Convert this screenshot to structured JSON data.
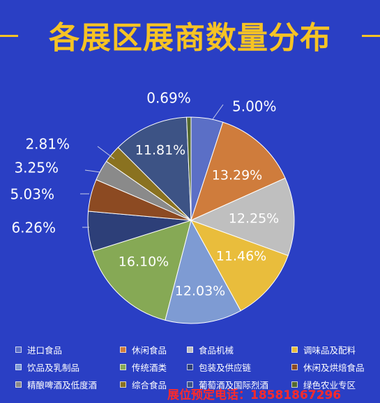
{
  "title": "各展区展商数量分布",
  "footer": "展位预定电话：18581867296",
  "chart_data": {
    "type": "pie",
    "title": "各展区展商数量分布",
    "slices": [
      {
        "name": "进口食品",
        "value": 5.0,
        "label": "5.00%",
        "color": "#5b6fc6"
      },
      {
        "name": "休闲食品",
        "value": 13.29,
        "label": "13.29%",
        "color": "#cf7c3c"
      },
      {
        "name": "食品机械",
        "value": 12.25,
        "label": "12.25%",
        "color": "#bfbfbf"
      },
      {
        "name": "调味品及配料",
        "value": 11.46,
        "label": "11.46%",
        "color": "#e9bd3c"
      },
      {
        "name": "饮品及乳制品",
        "value": 12.03,
        "label": "12.03%",
        "color": "#7e9bd3"
      },
      {
        "name": "传统酒类",
        "value": 16.1,
        "label": "16.10%",
        "color": "#86a955"
      },
      {
        "name": "包装及供应链",
        "value": 6.26,
        "label": "6.26%",
        "color": "#2d3f78"
      },
      {
        "name": "休闲及烘焙食品",
        "value": 5.03,
        "label": "5.03%",
        "color": "#8c4a22"
      },
      {
        "name": "精酿啤酒及低度酒",
        "value": 3.25,
        "label": "3.25%",
        "color": "#8a8a8a"
      },
      {
        "name": "综合食品",
        "value": 2.81,
        "label": "2.81%",
        "color": "#8a7220"
      },
      {
        "name": "葡萄酒及国际烈酒",
        "value": 11.81,
        "label": "11.81%",
        "color": "#3d5385"
      },
      {
        "name": "绿色农业专区",
        "value": 0.69,
        "label": "0.69%",
        "color": "#556a2f"
      }
    ]
  }
}
